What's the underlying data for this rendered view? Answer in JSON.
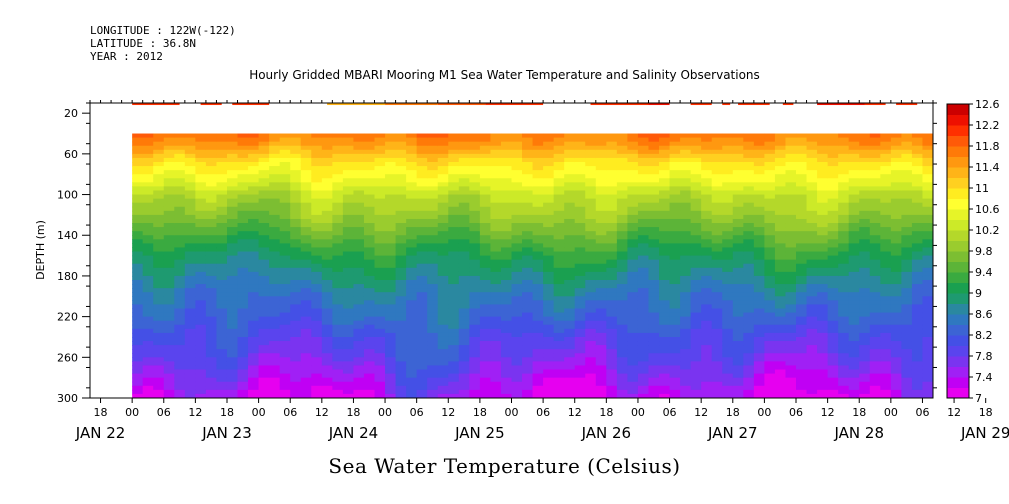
{
  "header": {
    "longitude": "LONGITUDE : 122W(-122)",
    "latitude": "LATITUDE : 36.8N",
    "year": "YEAR : 2012"
  },
  "chart_data": {
    "type": "heatmap",
    "title": "Hourly Gridded MBARI Mooring M1 Sea Water Temperature and Salinity Observations",
    "caption": "Sea Water Temperature (Celsius)",
    "ylabel": "DEPTH (m)",
    "xlabel": "",
    "ylim": [
      300,
      10
    ],
    "y_ticks": [
      20,
      60,
      100,
      140,
      180,
      220,
      260,
      300
    ],
    "x_hour_ticks": [
      "18",
      "00",
      "06",
      "12",
      "18",
      "00",
      "06",
      "12",
      "18",
      "00",
      "06",
      "12",
      "18",
      "00",
      "06",
      "12",
      "18",
      "00",
      "06",
      "12",
      "18",
      "00",
      "06",
      "12",
      "18",
      "00",
      "06",
      "12",
      "18",
      "00",
      "06",
      "12",
      "18",
      "00",
      "06",
      "12"
    ],
    "day_labels": [
      "JAN 22",
      "JAN 23",
      "JAN 24",
      "JAN 25",
      "JAN 26",
      "JAN 27",
      "JAN 28",
      "JAN 29"
    ],
    "x_range_hours": [
      -8,
      152
    ],
    "data_start_hour": 0,
    "colorbar": {
      "levels": [
        7,
        7.2,
        7.4,
        7.6,
        7.8,
        8,
        8.2,
        8.4,
        8.6,
        8.8,
        9,
        9.2,
        9.4,
        9.6,
        9.8,
        10,
        10.2,
        10.4,
        10.6,
        10.8,
        11,
        11.2,
        11.4,
        11.6,
        11.8,
        12,
        12.2,
        12.4,
        12.6
      ],
      "labels": [
        "12.6",
        "12.2",
        "11.8",
        "11.4",
        "11",
        "10.6",
        "10.2",
        "9.8",
        "9.4",
        "9",
        "8.6",
        "8.2",
        "7.8",
        "7.4",
        "7"
      ],
      "colors": [
        "#e600f0",
        "#c000f4",
        "#a020f5",
        "#7a34f0",
        "#5a44ee",
        "#4450e6",
        "#3c64d4",
        "#2f78c0",
        "#2a88a0",
        "#1e9a70",
        "#1aa050",
        "#3aaa40",
        "#5cb438",
        "#7cbe32",
        "#9acc2e",
        "#b4d82a",
        "#ccea28",
        "#e6f428",
        "#ffff30",
        "#ffec20",
        "#ffd020",
        "#ffb418",
        "#ff9810",
        "#ff7a08",
        "#ff5a08",
        "#ff3000",
        "#ee1000",
        "#cc0000",
        "#a80000"
      ]
    },
    "depth_profile": {
      "depths": [
        40,
        50,
        60,
        70,
        80,
        90,
        100,
        120,
        140,
        160,
        180,
        200,
        220,
        240,
        260,
        280,
        300
      ],
      "temperatures": [
        11.7,
        11.5,
        11.2,
        10.9,
        10.7,
        10.5,
        10.2,
        9.9,
        9.5,
        9.1,
        8.8,
        8.5,
        8.3,
        8.0,
        7.8,
        7.5,
        7.2
      ]
    },
    "surface_row": {
      "depth": 10,
      "segments": [
        {
          "start": 0,
          "end": 9,
          "temp": 12.0
        },
        {
          "start": 13,
          "end": 17,
          "temp": 12.0
        },
        {
          "start": 19,
          "end": 26,
          "temp": 12.0
        },
        {
          "start": 37,
          "end": 48,
          "temp": 11.3
        },
        {
          "start": 48,
          "end": 58,
          "temp": 11.6
        },
        {
          "start": 58,
          "end": 67,
          "temp": 11.9
        },
        {
          "start": 67,
          "end": 78,
          "temp": 12.1
        },
        {
          "start": 87,
          "end": 98,
          "temp": 12.0
        },
        {
          "start": 98,
          "end": 102,
          "temp": 12.2
        },
        {
          "start": 106,
          "end": 110,
          "temp": 12.0
        },
        {
          "start": 112,
          "end": 113.5,
          "temp": 12.0
        },
        {
          "start": 115,
          "end": 121,
          "temp": 12.0
        },
        {
          "start": 123.5,
          "end": 125.5,
          "temp": 12.0
        },
        {
          "start": 130,
          "end": 139,
          "temp": 12.3
        },
        {
          "start": 139,
          "end": 143,
          "temp": 12.1
        },
        {
          "start": 145,
          "end": 149,
          "temp": 12.0
        },
        {
          "start": 152,
          "end": 157,
          "temp": 12.0
        }
      ]
    }
  }
}
